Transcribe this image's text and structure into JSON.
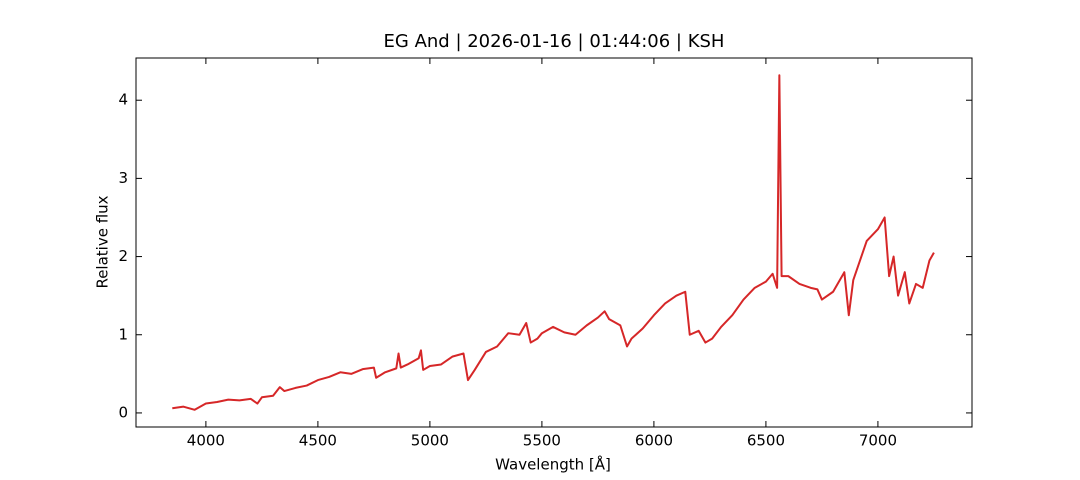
{
  "chart_data": {
    "type": "line",
    "title": "EG And | 2026-01-16 | 01:44:06 | KSH",
    "x_label": "Wavelength [Å]",
    "y_label": "Relative flux",
    "xlim": [
      3688,
      7420
    ],
    "ylim": [
      -0.18,
      4.54
    ],
    "xticks": [
      4000,
      4500,
      5000,
      5500,
      6000,
      6500,
      7000
    ],
    "yticks": [
      0,
      1,
      2,
      3,
      4
    ],
    "x": [
      3850,
      3900,
      3950,
      4000,
      4050,
      4100,
      4150,
      4200,
      4230,
      4250,
      4300,
      4330,
      4350,
      4400,
      4450,
      4500,
      4550,
      4600,
      4650,
      4700,
      4750,
      4760,
      4800,
      4850,
      4860,
      4870,
      4900,
      4950,
      4960,
      4970,
      5000,
      5050,
      5100,
      5150,
      5170,
      5200,
      5250,
      5300,
      5350,
      5400,
      5430,
      5450,
      5480,
      5500,
      5550,
      5600,
      5650,
      5700,
      5750,
      5780,
      5800,
      5850,
      5880,
      5900,
      5950,
      6000,
      6050,
      6100,
      6140,
      6160,
      6200,
      6230,
      6260,
      6300,
      6350,
      6400,
      6450,
      6500,
      6530,
      6550,
      6560,
      6570,
      6600,
      6650,
      6700,
      6730,
      6750,
      6800,
      6850,
      6870,
      6890,
      6950,
      7000,
      7030,
      7050,
      7070,
      7090,
      7120,
      7140,
      7170,
      7200,
      7230,
      7250
    ],
    "series": [
      {
        "name": "flux",
        "color": "#d62728",
        "values": [
          0.06,
          0.08,
          0.04,
          0.12,
          0.14,
          0.17,
          0.16,
          0.18,
          0.12,
          0.2,
          0.22,
          0.33,
          0.28,
          0.32,
          0.35,
          0.42,
          0.46,
          0.52,
          0.5,
          0.56,
          0.58,
          0.45,
          0.52,
          0.57,
          0.76,
          0.58,
          0.62,
          0.7,
          0.8,
          0.55,
          0.6,
          0.62,
          0.72,
          0.76,
          0.42,
          0.55,
          0.78,
          0.85,
          1.02,
          1.0,
          1.15,
          0.9,
          0.95,
          1.02,
          1.1,
          1.03,
          1.0,
          1.12,
          1.22,
          1.3,
          1.2,
          1.12,
          0.85,
          0.95,
          1.08,
          1.25,
          1.4,
          1.5,
          1.55,
          1.0,
          1.05,
          0.9,
          0.95,
          1.1,
          1.25,
          1.45,
          1.6,
          1.68,
          1.78,
          1.6,
          4.32,
          1.75,
          1.75,
          1.65,
          1.6,
          1.58,
          1.45,
          1.55,
          1.8,
          1.25,
          1.7,
          2.2,
          2.35,
          2.5,
          1.75,
          2.0,
          1.5,
          1.8,
          1.4,
          1.65,
          1.6,
          1.95,
          2.05
        ]
      }
    ]
  }
}
